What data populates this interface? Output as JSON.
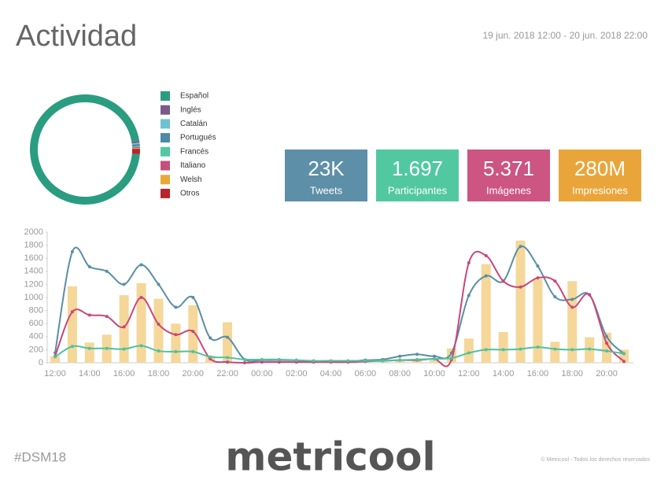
{
  "header": {
    "title": "Actividad",
    "date_range": "19 jun. 2018 12:00 - 20 jun. 2018 22:00"
  },
  "chart_data": [
    {
      "type": "pie",
      "donut": true,
      "categories": [
        "Español",
        "Inglés",
        "Catalán",
        "Portugués",
        "Francés",
        "Italiano",
        "Welsh",
        "Otros"
      ],
      "values": [
        96,
        0.6,
        0.4,
        0.6,
        0.3,
        0.3,
        0.2,
        1.6
      ],
      "colors": [
        "#2a9d80",
        "#7b5a8a",
        "#6cc2d0",
        "#4c8aa6",
        "#52c8a0",
        "#c54f7c",
        "#e8a93a",
        "#b8242c"
      ]
    },
    {
      "type": "combo",
      "categories": [
        "12:00",
        null,
        "14:00",
        null,
        "16:00",
        null,
        "18:00",
        null,
        "20:00",
        null,
        "22:00",
        null,
        "00:00",
        null,
        "02:00",
        null,
        "04:00",
        null,
        "06:00",
        null,
        "08:00",
        null,
        "10:00",
        null,
        "12:00",
        null,
        "14:00",
        null,
        "16:00",
        null,
        "18:00",
        null,
        "20:00",
        null
      ],
      "ylim": [
        0,
        2000
      ],
      "yticks": [
        0,
        200,
        400,
        600,
        800,
        1000,
        1200,
        1400,
        1600,
        1800,
        2000
      ],
      "series": [
        {
          "type": "bar",
          "color": "#f5d79a",
          "values": [
            100,
            1170,
            310,
            430,
            1035,
            1220,
            980,
            600,
            880,
            110,
            620,
            10,
            20,
            20,
            20,
            10,
            10,
            10,
            20,
            20,
            30,
            30,
            40,
            220,
            370,
            1510,
            470,
            1870,
            1280,
            320,
            1250,
            390,
            460,
            200
          ]
        },
        {
          "type": "line",
          "color": "#5a8ea6",
          "values": [
            150,
            1700,
            1470,
            1400,
            1200,
            1500,
            1200,
            850,
            1000,
            380,
            390,
            50,
            40,
            40,
            35,
            20,
            20,
            20,
            40,
            50,
            100,
            130,
            100,
            150,
            1030,
            1330,
            1250,
            1780,
            1480,
            1010,
            970,
            1040,
            400,
            140
          ]
        },
        {
          "type": "line",
          "color": "#c8477a",
          "values": [
            100,
            780,
            730,
            710,
            550,
            1000,
            590,
            430,
            480,
            60,
            10,
            0,
            10,
            10,
            10,
            10,
            10,
            10,
            20,
            30,
            40,
            40,
            60,
            50,
            1530,
            1640,
            1250,
            1160,
            1300,
            1250,
            850,
            1040,
            300,
            20
          ]
        },
        {
          "type": "line",
          "color": "#4fc2a0",
          "values": [
            90,
            250,
            220,
            220,
            210,
            260,
            180,
            170,
            170,
            90,
            80,
            50,
            50,
            50,
            40,
            30,
            30,
            30,
            30,
            30,
            40,
            50,
            60,
            70,
            150,
            200,
            200,
            210,
            240,
            210,
            200,
            210,
            180,
            140
          ]
        }
      ]
    }
  ],
  "kpis": [
    {
      "value": "23K",
      "label": "Tweets",
      "color": "#5d8fa8"
    },
    {
      "value": "1.697",
      "label": "Participantes",
      "color": "#52c8a0"
    },
    {
      "value": "5.371",
      "label": "Imágenes",
      "color": "#cc5582"
    },
    {
      "value": "280M",
      "label": "Impresiones",
      "color": "#eaa53a"
    }
  ],
  "footer": {
    "hashtag": "#DSM18",
    "logo": "metricool",
    "copyright": "© Metricool - Todos los derechos reservados"
  }
}
